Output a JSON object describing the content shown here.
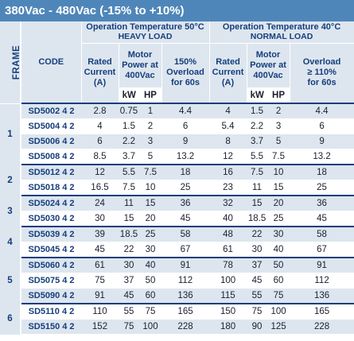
{
  "title": "380Vac - 480Vac (-15% to +10%)",
  "headers": {
    "frame": "FRAME",
    "code": "CODE",
    "heavy": {
      "line1": "Operation Temperature  50°C",
      "line2": "HEAVY LOAD"
    },
    "normal": {
      "line1": "Operation Temperature  40°C",
      "line2": "NORMAL LOAD"
    },
    "rated_current": [
      "Rated",
      "Current",
      "(A)"
    ],
    "motor_power": [
      "Motor",
      "Power at",
      "400Vac"
    ],
    "overload_heavy": [
      "150%",
      "Overload",
      "for 60s"
    ],
    "overload_normal": [
      "Overload",
      "≥ 110%",
      "for 60s"
    ],
    "kw": "kW",
    "hp": "HP"
  },
  "rows": [
    {
      "frame": "1",
      "code": "SD5002 4 2",
      "h_a": "2.8",
      "h_kw": "0.75",
      "h_hp": "1",
      "h_ol": "4.4",
      "n_a": "4",
      "n_kw": "1.5",
      "n_hp": "2",
      "n_ol": "4.4"
    },
    {
      "frame": "",
      "code": "SD5004 4 2",
      "h_a": "4",
      "h_kw": "1.5",
      "h_hp": "2",
      "h_ol": "6",
      "n_a": "5.4",
      "n_kw": "2.2",
      "n_hp": "3",
      "n_ol": "6"
    },
    {
      "frame": "",
      "code": "SD5006 4 2",
      "h_a": "6",
      "h_kw": "2.2",
      "h_hp": "3",
      "h_ol": "9",
      "n_a": "8",
      "n_kw": "3.7",
      "n_hp": "5",
      "n_ol": "9"
    },
    {
      "frame": "",
      "code": "SD5008 4 2",
      "h_a": "8.5",
      "h_kw": "3.7",
      "h_hp": "5",
      "h_ol": "13.2",
      "n_a": "12",
      "n_kw": "5.5",
      "n_hp": "7.5",
      "n_ol": "13.2"
    },
    {
      "frame": "2",
      "code": "SD5012 4 2",
      "h_a": "12",
      "h_kw": "5.5",
      "h_hp": "7.5",
      "h_ol": "18",
      "n_a": "16",
      "n_kw": "7.5",
      "n_hp": "10",
      "n_ol": "18"
    },
    {
      "frame": "",
      "code": "SD5018 4 2",
      "h_a": "16.5",
      "h_kw": "7.5",
      "h_hp": "10",
      "h_ol": "25",
      "n_a": "23",
      "n_kw": "11",
      "n_hp": "15",
      "n_ol": "25"
    },
    {
      "frame": "3",
      "code": "SD5024 4 2",
      "h_a": "24",
      "h_kw": "11",
      "h_hp": "15",
      "h_ol": "36",
      "n_a": "32",
      "n_kw": "15",
      "n_hp": "20",
      "n_ol": "36"
    },
    {
      "frame": "",
      "code": "SD5030 4 2",
      "h_a": "30",
      "h_kw": "15",
      "h_hp": "20",
      "h_ol": "45",
      "n_a": "40",
      "n_kw": "18.5",
      "n_hp": "25",
      "n_ol": "45"
    },
    {
      "frame": "4",
      "code": "SD5039 4 2",
      "h_a": "39",
      "h_kw": "18.5",
      "h_hp": "25",
      "h_ol": "58",
      "n_a": "48",
      "n_kw": "22",
      "n_hp": "30",
      "n_ol": "58"
    },
    {
      "frame": "",
      "code": "SD5045 4 2",
      "h_a": "45",
      "h_kw": "22",
      "h_hp": "30",
      "h_ol": "67",
      "n_a": "61",
      "n_kw": "30",
      "n_hp": "40",
      "n_ol": "67"
    },
    {
      "frame": "5",
      "code": "SD5060 4 2",
      "h_a": "61",
      "h_kw": "30",
      "h_hp": "40",
      "h_ol": "91",
      "n_a": "78",
      "n_kw": "37",
      "n_hp": "50",
      "n_ol": "91"
    },
    {
      "frame": "",
      "code": "SD5075 4 2",
      "h_a": "75",
      "h_kw": "37",
      "h_hp": "50",
      "h_ol": "112",
      "n_a": "100",
      "n_kw": "45",
      "n_hp": "60",
      "n_ol": "112"
    },
    {
      "frame": "",
      "code": "SD5090 4 2",
      "h_a": "91",
      "h_kw": "45",
      "h_hp": "60",
      "h_ol": "136",
      "n_a": "115",
      "n_kw": "55",
      "n_hp": "75",
      "n_ol": "136"
    },
    {
      "frame": "6",
      "code": "SD5110 4 2",
      "h_a": "110",
      "h_kw": "55",
      "h_hp": "75",
      "h_ol": "165",
      "n_a": "150",
      "n_kw": "75",
      "n_hp": "100",
      "n_ol": "165"
    },
    {
      "frame": "",
      "code": "SD5150 4 2",
      "h_a": "152",
      "h_kw": "75",
      "h_hp": "100",
      "h_ol": "228",
      "n_a": "180",
      "n_kw": "90",
      "n_hp": "125",
      "n_ol": "228"
    }
  ],
  "colors": {
    "header_bg": "#4f86b9",
    "shade": "#dde6ef",
    "text_blue": "#163e7c",
    "rule": "#163e7c"
  }
}
